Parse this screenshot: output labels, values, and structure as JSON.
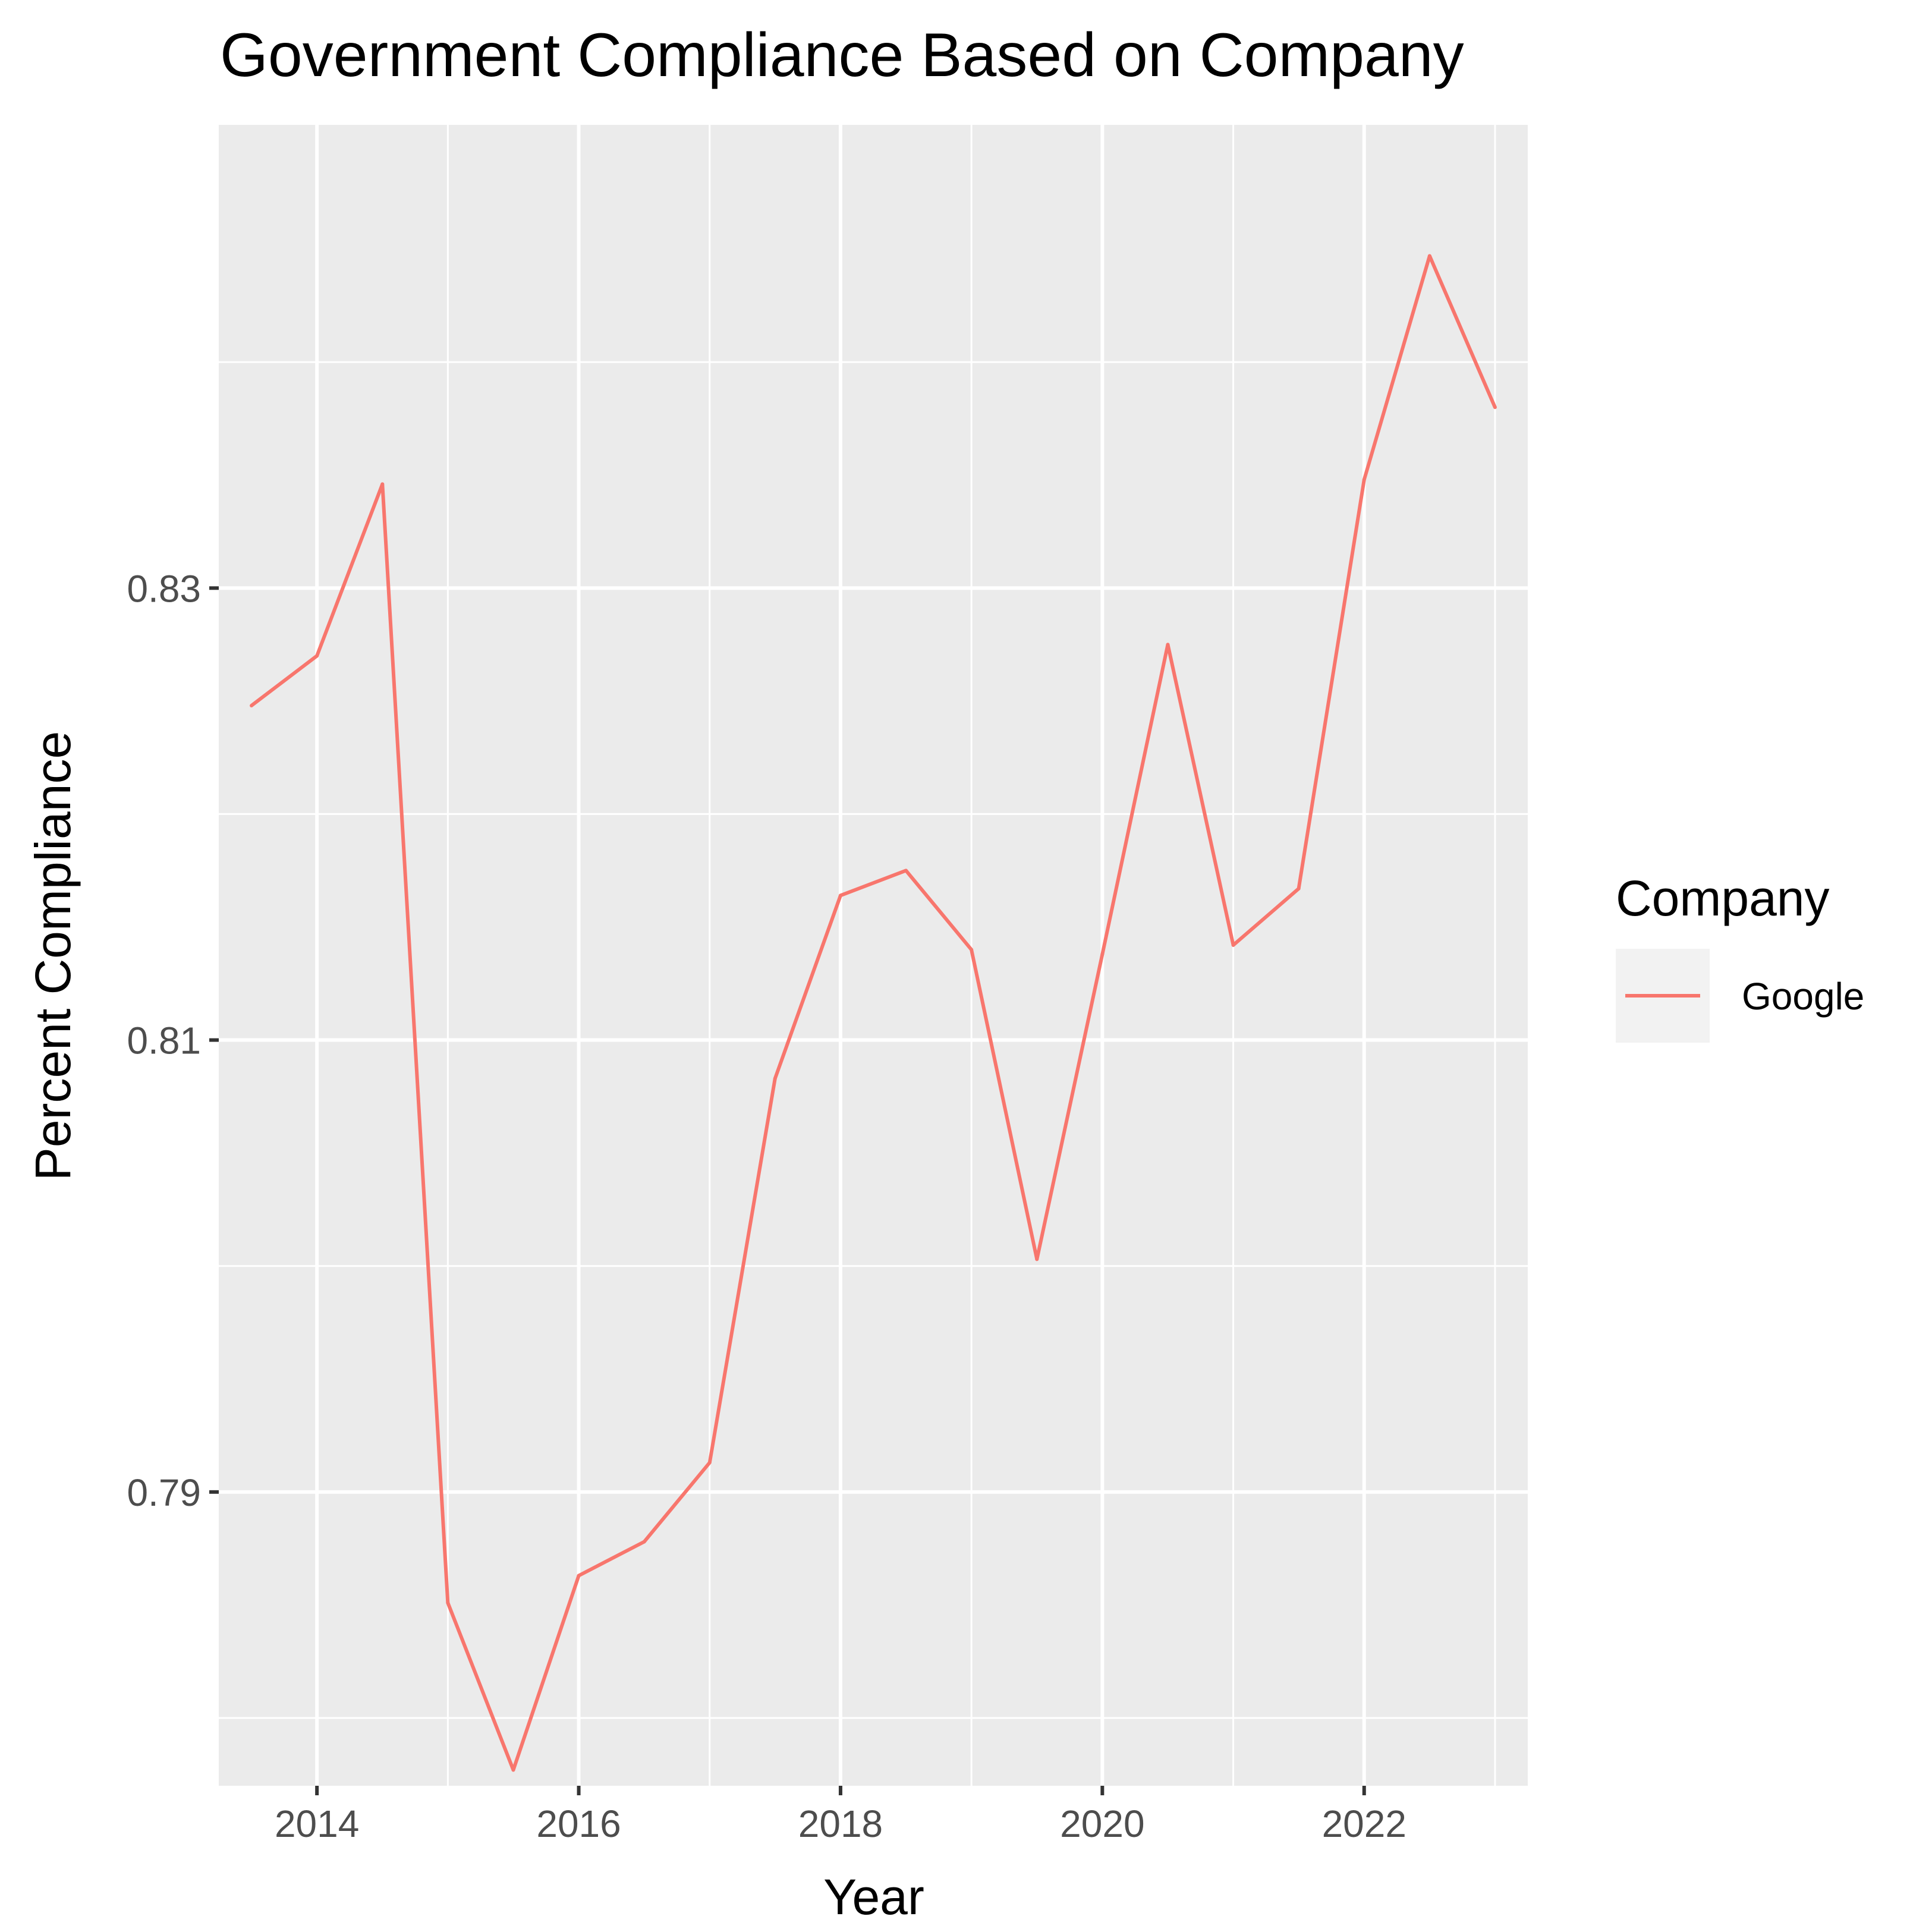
{
  "chart_data": {
    "type": "line",
    "title": "Government Compliance Based on Company",
    "xlabel": "Year",
    "ylabel": "Percent Compliance",
    "x_ticks": [
      2014,
      2016,
      2018,
      2020,
      2022
    ],
    "y_ticks": [
      0.79,
      0.81,
      0.83
    ],
    "xlim": [
      2013.25,
      2023.25
    ],
    "ylim": [
      0.777,
      0.8505
    ],
    "grid": true,
    "legend": {
      "title": "Company",
      "position": "right"
    },
    "series": [
      {
        "name": "Google",
        "color": "#F8766D",
        "x": [
          2013.5,
          2014,
          2014.5,
          2015,
          2015.5,
          2016,
          2016.5,
          2017,
          2017.5,
          2018,
          2018.5,
          2019,
          2019.5,
          2020,
          2020.5,
          2021,
          2021.5,
          2022,
          2022.5,
          2023
        ],
        "y": [
          0.8248,
          0.827,
          0.8346,
          0.7851,
          0.7777,
          0.7863,
          0.7878,
          0.7913,
          0.8083,
          0.8164,
          0.8175,
          0.814,
          0.8003,
          0.8138,
          0.8275,
          0.8142,
          0.8167,
          0.8348,
          0.8447,
          0.838
        ]
      }
    ]
  }
}
